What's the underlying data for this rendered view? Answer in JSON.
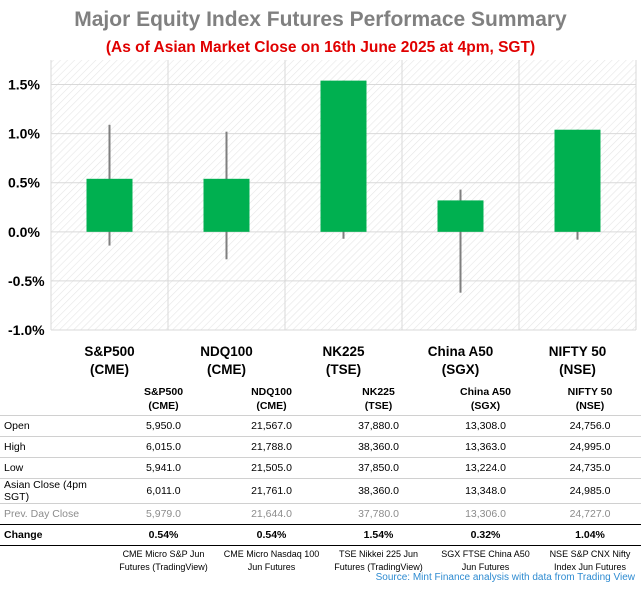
{
  "title": "Major Equity Index Futures Performace Summary",
  "subtitle": "(As of Asian Market Close on 16th June 2025 at 4pm, SGT)",
  "chart_data": {
    "type": "candlestick",
    "ylim": [
      -1.0,
      1.75
    ],
    "yticks": [
      -1.0,
      -0.5,
      0.0,
      0.5,
      1.0,
      1.5
    ],
    "yticklabels": [
      "-1.0%",
      "-0.5%",
      "0.0%",
      "0.5%",
      "1.0%",
      "1.5%"
    ],
    "grid": true,
    "bar_color": "#00b050",
    "categories": [
      {
        "line1": "S&P500",
        "line2": "(CME)",
        "open": 0.0,
        "close": 0.54,
        "high": 1.09,
        "low": -0.14
      },
      {
        "line1": "NDQ100",
        "line2": "(CME)",
        "open": 0.0,
        "close": 0.54,
        "high": 1.02,
        "low": -0.28
      },
      {
        "line1": "NK225",
        "line2": "(TSE)",
        "open": 0.0,
        "close": 1.54,
        "high": 1.54,
        "low": -0.07
      },
      {
        "line1": "China A50",
        "line2": "(SGX)",
        "open": 0.0,
        "close": 0.32,
        "high": 0.43,
        "low": -0.62
      },
      {
        "line1": "NIFTY 50",
        "line2": "(NSE)",
        "open": 0.0,
        "close": 1.04,
        "high": 1.04,
        "low": -0.08
      }
    ]
  },
  "table": {
    "headers": [
      [
        "S&P500",
        "(CME)"
      ],
      [
        "NDQ100",
        "(CME)"
      ],
      [
        "NK225",
        "(TSE)"
      ],
      [
        "China A50",
        "(SGX)"
      ],
      [
        "NIFTY 50",
        "(NSE)"
      ]
    ],
    "rows": [
      {
        "label": "Open",
        "values": [
          "5,950.0",
          "21,567.0",
          "37,880.0",
          "13,308.0",
          "24,756.0"
        ]
      },
      {
        "label": "High",
        "values": [
          "6,015.0",
          "21,788.0",
          "38,360.0",
          "13,363.0",
          "24,995.0"
        ]
      },
      {
        "label": "Low",
        "values": [
          "5,941.0",
          "21,505.0",
          "37,850.0",
          "13,224.0",
          "24,735.0"
        ]
      },
      {
        "label": "Asian Close (4pm SGT)",
        "values": [
          "6,011.0",
          "21,761.0",
          "38,360.0",
          "13,348.0",
          "24,985.0"
        ]
      },
      {
        "label": "Prev. Day Close",
        "values": [
          "5,979.0",
          "21,644.0",
          "37,780.0",
          "13,306.0",
          "24,727.0"
        ]
      },
      {
        "label": "Change",
        "values": [
          "0.54%",
          "0.54%",
          "1.54%",
          "0.32%",
          "1.04%"
        ]
      }
    ],
    "sources": [
      [
        "CME Micro S&P Jun",
        "Futures (TradingView)"
      ],
      [
        "CME Micro Nasdaq 100",
        "Jun Futures"
      ],
      [
        "TSE Nikkei 225 Jun",
        "Futures (TradingView)"
      ],
      [
        "SGX FTSE China A50",
        "Jun Futures"
      ],
      [
        "NSE S&P CNX Nifty",
        "Index Jun Futures"
      ]
    ]
  },
  "source_note": "Source: Mint Finance analysis with data from Trading View"
}
